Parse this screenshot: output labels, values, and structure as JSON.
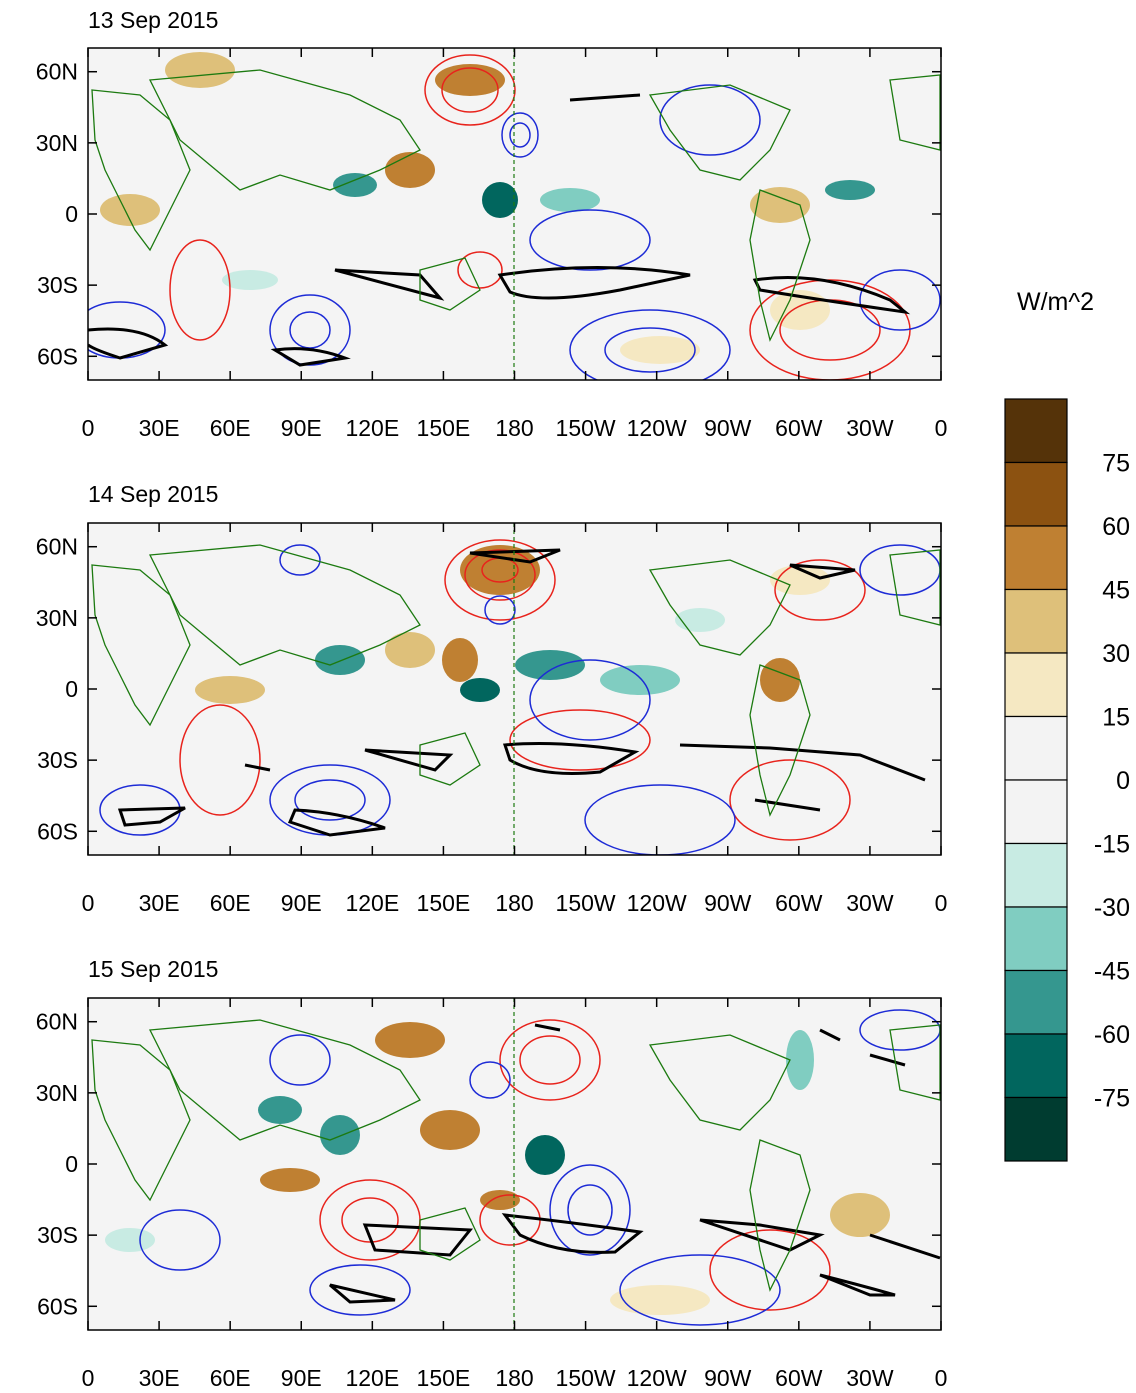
{
  "panels": [
    {
      "title": "13 Sep 2015"
    },
    {
      "title": "14 Sep 2015"
    },
    {
      "title": "15 Sep 2015"
    }
  ],
  "axes": {
    "lat_labels": [
      "60N",
      "30N",
      "0",
      "30S",
      "60S"
    ],
    "lat_values": [
      60,
      30,
      0,
      -30,
      -60
    ],
    "lon_labels": [
      "0",
      "30E",
      "60E",
      "90E",
      "120E",
      "150E",
      "180",
      "150W",
      "120W",
      "90W",
      "60W",
      "30W",
      "0"
    ],
    "lon_values": [
      0,
      30,
      60,
      90,
      120,
      150,
      180,
      210,
      240,
      270,
      300,
      330,
      360
    ],
    "lat_range": [
      -70,
      70
    ],
    "lon_range": [
      0,
      360
    ]
  },
  "colorbar": {
    "unit_label": "W/m^2",
    "tick_labels": [
      "75",
      "60",
      "45",
      "30",
      "15",
      "0",
      "-15",
      "-30",
      "-45",
      "-60",
      "-75"
    ],
    "colors": [
      "#553309",
      "#8c5211",
      "#bf8032",
      "#dec07a",
      "#f5e8c2",
      "#f3f3f3",
      "#f3f3f3",
      "#c8ebe3",
      "#80cdc1",
      "#35978f",
      "#01665e",
      "#003c30"
    ]
  },
  "styles": {
    "positive_contour": "#e8231c",
    "negative_contour": "#1d2bd6",
    "coastline": "#1c7a10",
    "outline": "#000000"
  }
}
